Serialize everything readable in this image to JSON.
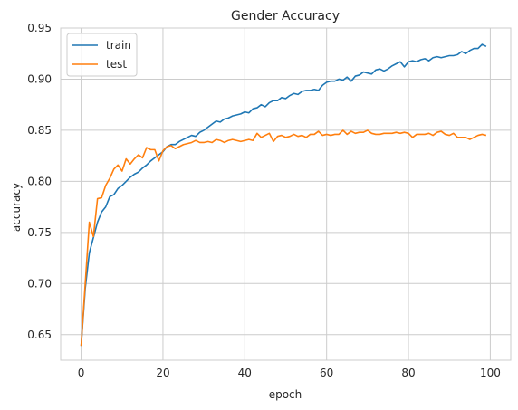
{
  "chart_data": {
    "type": "line",
    "title": "Gender Accuracy",
    "xlabel": "epoch",
    "ylabel": "accuracy",
    "xlim": [
      -5,
      105
    ],
    "ylim": [
      0.625,
      0.95
    ],
    "xticks": [
      0,
      20,
      40,
      60,
      80,
      100
    ],
    "yticks": [
      0.65,
      0.7,
      0.75,
      0.8,
      0.85,
      0.9,
      0.95
    ],
    "grid": true,
    "legend": "upper-left",
    "x": [
      0,
      1,
      2,
      3,
      4,
      5,
      6,
      7,
      8,
      9,
      10,
      11,
      12,
      13,
      14,
      15,
      16,
      17,
      18,
      19,
      20,
      21,
      22,
      23,
      24,
      25,
      26,
      27,
      28,
      29,
      30,
      31,
      32,
      33,
      34,
      35,
      36,
      37,
      38,
      39,
      40,
      41,
      42,
      43,
      44,
      45,
      46,
      47,
      48,
      49,
      50,
      51,
      52,
      53,
      54,
      55,
      56,
      57,
      58,
      59,
      60,
      61,
      62,
      63,
      64,
      65,
      66,
      67,
      68,
      69,
      70,
      71,
      72,
      73,
      74,
      75,
      76,
      77,
      78,
      79,
      80,
      81,
      82,
      83,
      84,
      85,
      86,
      87,
      88,
      89,
      90,
      91,
      92,
      93,
      94,
      95,
      96,
      97,
      98,
      99
    ],
    "series": [
      {
        "name": "train",
        "color": "#1f77b4",
        "values": [
          0.639,
          0.695,
          0.73,
          0.745,
          0.76,
          0.77,
          0.775,
          0.785,
          0.787,
          0.793,
          0.796,
          0.8,
          0.804,
          0.807,
          0.809,
          0.813,
          0.816,
          0.82,
          0.823,
          0.826,
          0.829,
          0.834,
          0.836,
          0.836,
          0.839,
          0.841,
          0.843,
          0.845,
          0.844,
          0.848,
          0.85,
          0.853,
          0.856,
          0.859,
          0.858,
          0.861,
          0.862,
          0.864,
          0.865,
          0.866,
          0.868,
          0.867,
          0.871,
          0.872,
          0.875,
          0.873,
          0.877,
          0.879,
          0.879,
          0.882,
          0.881,
          0.884,
          0.886,
          0.885,
          0.888,
          0.889,
          0.889,
          0.89,
          0.889,
          0.894,
          0.897,
          0.898,
          0.898,
          0.9,
          0.899,
          0.902,
          0.898,
          0.903,
          0.904,
          0.907,
          0.906,
          0.905,
          0.909,
          0.91,
          0.908,
          0.91,
          0.913,
          0.915,
          0.917,
          0.912,
          0.917,
          0.918,
          0.917,
          0.919,
          0.92,
          0.918,
          0.921,
          0.922,
          0.921,
          0.922,
          0.923,
          0.923,
          0.924,
          0.927,
          0.925,
          0.928,
          0.93,
          0.93,
          0.934,
          0.932
        ]
      },
      {
        "name": "test",
        "color": "#ff7f0e",
        "values": [
          0.639,
          0.7,
          0.76,
          0.746,
          0.783,
          0.784,
          0.796,
          0.803,
          0.812,
          0.816,
          0.81,
          0.822,
          0.817,
          0.822,
          0.826,
          0.823,
          0.833,
          0.831,
          0.831,
          0.82,
          0.83,
          0.834,
          0.835,
          0.832,
          0.834,
          0.836,
          0.837,
          0.838,
          0.84,
          0.838,
          0.838,
          0.839,
          0.838,
          0.841,
          0.84,
          0.838,
          0.84,
          0.841,
          0.84,
          0.839,
          0.84,
          0.841,
          0.84,
          0.847,
          0.843,
          0.845,
          0.847,
          0.839,
          0.844,
          0.845,
          0.843,
          0.844,
          0.846,
          0.844,
          0.845,
          0.843,
          0.846,
          0.846,
          0.849,
          0.845,
          0.846,
          0.845,
          0.846,
          0.846,
          0.85,
          0.846,
          0.849,
          0.847,
          0.848,
          0.848,
          0.85,
          0.847,
          0.846,
          0.846,
          0.847,
          0.847,
          0.847,
          0.848,
          0.847,
          0.848,
          0.847,
          0.843,
          0.846,
          0.846,
          0.846,
          0.847,
          0.845,
          0.848,
          0.849,
          0.846,
          0.845,
          0.847,
          0.843,
          0.843,
          0.843,
          0.841,
          0.843,
          0.845,
          0.846,
          0.845
        ]
      }
    ]
  }
}
